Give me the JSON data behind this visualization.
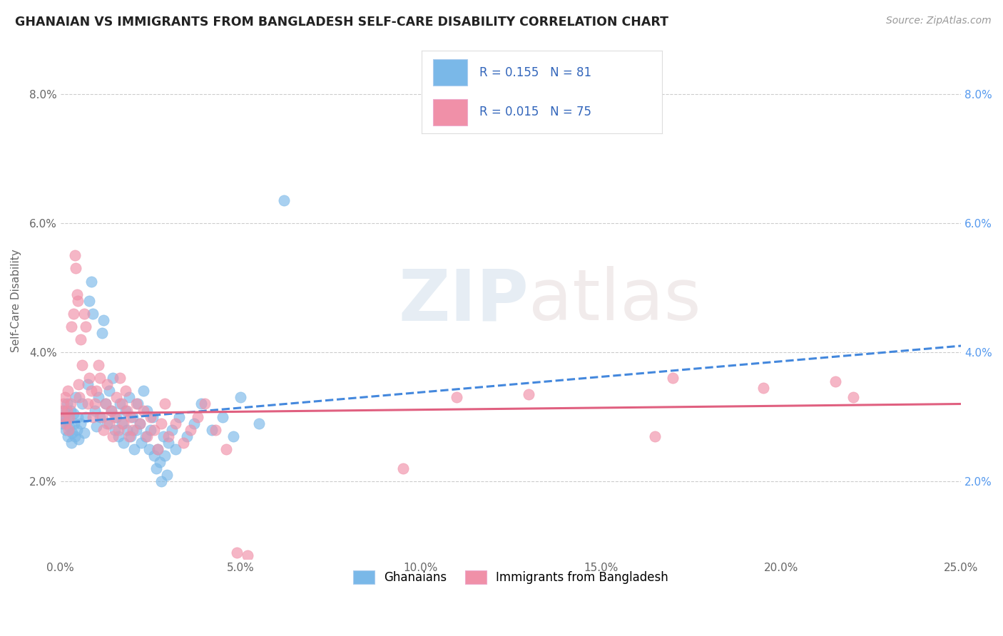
{
  "title": "GHANAIAN VS IMMIGRANTS FROM BANGLADESH SELF-CARE DISABILITY CORRELATION CHART",
  "source": "Source: ZipAtlas.com",
  "ylabel": "Self-Care Disability",
  "xmin": 0.0,
  "xmax": 25.0,
  "ymin": 0.8,
  "ymax": 8.8,
  "blue_R": 0.155,
  "blue_N": 81,
  "pink_R": 0.015,
  "pink_N": 75,
  "blue_scatter_color": "#7ab8e8",
  "pink_scatter_color": "#f090a8",
  "blue_line_color": "#4488dd",
  "pink_line_color": "#e06080",
  "legend_label_blue": "Ghanaians",
  "legend_label_pink": "Immigrants from Bangladesh",
  "watermark_zip": "ZIP",
  "watermark_atlas": "atlas",
  "blue_trend_start_y": 2.9,
  "blue_trend_end_y": 4.1,
  "pink_trend_start_y": 3.05,
  "pink_trend_end_y": 3.2,
  "blue_points": [
    [
      0.05,
      2.9
    ],
    [
      0.08,
      3.0
    ],
    [
      0.1,
      3.1
    ],
    [
      0.12,
      2.95
    ],
    [
      0.15,
      2.8
    ],
    [
      0.18,
      3.2
    ],
    [
      0.2,
      2.7
    ],
    [
      0.22,
      3.0
    ],
    [
      0.25,
      2.85
    ],
    [
      0.28,
      3.1
    ],
    [
      0.3,
      2.6
    ],
    [
      0.32,
      2.75
    ],
    [
      0.35,
      3.05
    ],
    [
      0.38,
      2.9
    ],
    [
      0.4,
      2.7
    ],
    [
      0.42,
      3.3
    ],
    [
      0.45,
      2.8
    ],
    [
      0.48,
      3.0
    ],
    [
      0.5,
      2.65
    ],
    [
      0.55,
      2.9
    ],
    [
      0.6,
      3.2
    ],
    [
      0.65,
      2.75
    ],
    [
      0.7,
      3.0
    ],
    [
      0.75,
      3.5
    ],
    [
      0.8,
      4.8
    ],
    [
      0.85,
      5.1
    ],
    [
      0.9,
      4.6
    ],
    [
      0.95,
      3.1
    ],
    [
      1.0,
      2.85
    ],
    [
      1.05,
      3.3
    ],
    [
      1.1,
      3.0
    ],
    [
      1.15,
      4.3
    ],
    [
      1.2,
      4.5
    ],
    [
      1.25,
      3.2
    ],
    [
      1.3,
      2.9
    ],
    [
      1.35,
      3.4
    ],
    [
      1.4,
      3.1
    ],
    [
      1.45,
      3.6
    ],
    [
      1.5,
      2.8
    ],
    [
      1.55,
      3.0
    ],
    [
      1.6,
      2.7
    ],
    [
      1.65,
      3.2
    ],
    [
      1.7,
      2.9
    ],
    [
      1.75,
      2.6
    ],
    [
      1.8,
      3.1
    ],
    [
      1.85,
      2.8
    ],
    [
      1.9,
      3.3
    ],
    [
      1.95,
      2.7
    ],
    [
      2.0,
      3.0
    ],
    [
      2.05,
      2.5
    ],
    [
      2.1,
      2.8
    ],
    [
      2.15,
      3.2
    ],
    [
      2.2,
      2.9
    ],
    [
      2.25,
      2.6
    ],
    [
      2.3,
      3.4
    ],
    [
      2.35,
      2.7
    ],
    [
      2.4,
      3.1
    ],
    [
      2.45,
      2.5
    ],
    [
      2.5,
      2.8
    ],
    [
      2.55,
      3.0
    ],
    [
      2.6,
      2.4
    ],
    [
      2.65,
      2.2
    ],
    [
      2.7,
      2.5
    ],
    [
      2.75,
      2.3
    ],
    [
      2.8,
      2.0
    ],
    [
      2.85,
      2.7
    ],
    [
      2.9,
      2.4
    ],
    [
      2.95,
      2.1
    ],
    [
      3.0,
      2.6
    ],
    [
      3.1,
      2.8
    ],
    [
      3.2,
      2.5
    ],
    [
      3.3,
      3.0
    ],
    [
      3.5,
      2.7
    ],
    [
      3.7,
      2.9
    ],
    [
      3.9,
      3.2
    ],
    [
      4.2,
      2.8
    ],
    [
      4.5,
      3.0
    ],
    [
      4.8,
      2.7
    ],
    [
      5.0,
      3.3
    ],
    [
      5.5,
      2.9
    ],
    [
      6.2,
      6.35
    ]
  ],
  "pink_points": [
    [
      0.05,
      3.1
    ],
    [
      0.08,
      3.2
    ],
    [
      0.1,
      3.0
    ],
    [
      0.12,
      3.3
    ],
    [
      0.15,
      2.9
    ],
    [
      0.18,
      3.1
    ],
    [
      0.2,
      3.4
    ],
    [
      0.22,
      2.8
    ],
    [
      0.25,
      3.0
    ],
    [
      0.28,
      3.2
    ],
    [
      0.3,
      4.4
    ],
    [
      0.35,
      4.6
    ],
    [
      0.4,
      5.5
    ],
    [
      0.42,
      5.3
    ],
    [
      0.45,
      4.9
    ],
    [
      0.48,
      4.8
    ],
    [
      0.5,
      3.5
    ],
    [
      0.52,
      3.3
    ],
    [
      0.55,
      4.2
    ],
    [
      0.6,
      3.8
    ],
    [
      0.65,
      4.6
    ],
    [
      0.7,
      4.4
    ],
    [
      0.75,
      3.2
    ],
    [
      0.8,
      3.6
    ],
    [
      0.85,
      3.4
    ],
    [
      0.9,
      3.0
    ],
    [
      0.95,
      3.2
    ],
    [
      1.0,
      3.4
    ],
    [
      1.05,
      3.8
    ],
    [
      1.1,
      3.6
    ],
    [
      1.15,
      3.0
    ],
    [
      1.2,
      2.8
    ],
    [
      1.25,
      3.2
    ],
    [
      1.3,
      3.5
    ],
    [
      1.35,
      2.9
    ],
    [
      1.4,
      3.1
    ],
    [
      1.45,
      2.7
    ],
    [
      1.5,
      3.0
    ],
    [
      1.55,
      3.3
    ],
    [
      1.6,
      2.8
    ],
    [
      1.65,
      3.6
    ],
    [
      1.7,
      3.2
    ],
    [
      1.75,
      2.9
    ],
    [
      1.8,
      3.4
    ],
    [
      1.85,
      3.1
    ],
    [
      1.9,
      2.7
    ],
    [
      1.95,
      3.0
    ],
    [
      2.0,
      2.8
    ],
    [
      2.1,
      3.2
    ],
    [
      2.2,
      2.9
    ],
    [
      2.3,
      3.1
    ],
    [
      2.4,
      2.7
    ],
    [
      2.5,
      3.0
    ],
    [
      2.6,
      2.8
    ],
    [
      2.7,
      2.5
    ],
    [
      2.8,
      2.9
    ],
    [
      2.9,
      3.2
    ],
    [
      3.0,
      2.7
    ],
    [
      3.2,
      2.9
    ],
    [
      3.4,
      2.6
    ],
    [
      3.6,
      2.8
    ],
    [
      3.8,
      3.0
    ],
    [
      4.0,
      3.2
    ],
    [
      4.3,
      2.8
    ],
    [
      4.6,
      2.5
    ],
    [
      4.9,
      0.9
    ],
    [
      5.2,
      0.85
    ],
    [
      9.5,
      2.2
    ],
    [
      11.0,
      3.3
    ],
    [
      13.0,
      3.35
    ],
    [
      16.5,
      2.7
    ],
    [
      17.0,
      3.6
    ],
    [
      19.5,
      3.45
    ],
    [
      21.5,
      3.55
    ],
    [
      22.0,
      3.3
    ]
  ]
}
